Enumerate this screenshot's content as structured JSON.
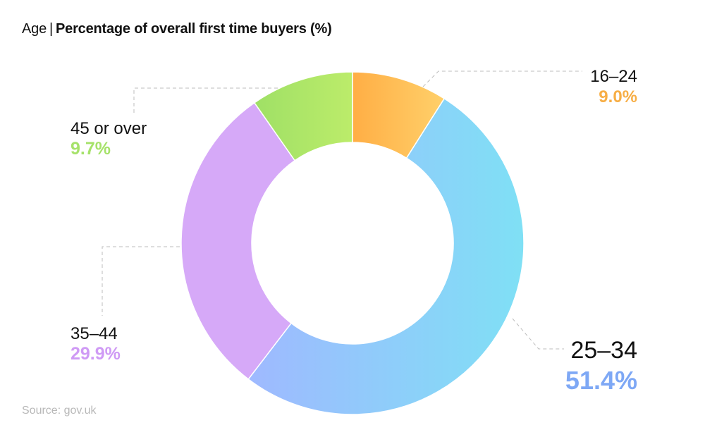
{
  "title": {
    "prefix": "Age",
    "separator": "|",
    "main": "Percentage of overall first time buyers (%)"
  },
  "source": "Source: gov.uk",
  "chart_data": {
    "type": "pie",
    "variant": "donut",
    "start_angle_deg": 0,
    "direction": "clockwise",
    "slices": [
      {
        "label": "16–24",
        "value": 9.0,
        "value_label": "9.0%",
        "color_start": "#ffae45",
        "color_end": "#ffd06a",
        "label_color": "#f7ae45"
      },
      {
        "label": "25–34",
        "value": 51.4,
        "value_label": "51.4%",
        "color_start": "#9fb9ff",
        "color_end": "#7fe0f5",
        "label_color": "#7ea8f5"
      },
      {
        "label": "35–44",
        "value": 29.9,
        "value_label": "29.9%",
        "color_start": "#d6a9f8",
        "color_end": "#d6a9f8",
        "label_color": "#cf9af5"
      },
      {
        "label": "45 or over",
        "value": 9.7,
        "value_label": "9.7%",
        "color_start": "#9fe066",
        "color_end": "#bcec6a",
        "label_color": "#a6e26a"
      }
    ]
  }
}
